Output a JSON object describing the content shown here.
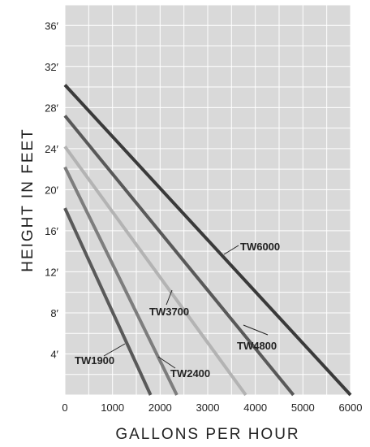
{
  "chart_data": {
    "type": "line",
    "title": "",
    "xlabel": "GALLONS PER HOUR",
    "ylabel": "HEIGHT IN FEET",
    "xlim": [
      0,
      6000
    ],
    "ylim": [
      0,
      38
    ],
    "grid": true,
    "legend": "inline-labels",
    "x_ticks": [
      {
        "value": 0,
        "label": "0"
      },
      {
        "value": 1000,
        "label": "1000"
      },
      {
        "value": 2000,
        "label": "2000"
      },
      {
        "value": 3000,
        "label": "3000"
      },
      {
        "value": 4000,
        "label": "4000"
      },
      {
        "value": 5000,
        "label": "5000"
      },
      {
        "value": 6000,
        "label": "6000"
      }
    ],
    "y_ticks": [
      {
        "value": 4,
        "label": "4′"
      },
      {
        "value": 8,
        "label": "8′"
      },
      {
        "value": 12,
        "label": "12′"
      },
      {
        "value": 16,
        "label": "16′"
      },
      {
        "value": 20,
        "label": "20′"
      },
      {
        "value": 24,
        "label": "24′"
      },
      {
        "value": 28,
        "label": "28′"
      },
      {
        "value": 32,
        "label": "32′"
      },
      {
        "value": 36,
        "label": "36′"
      }
    ],
    "series": [
      {
        "name": "TW6000",
        "color": "#3a3a3a",
        "x": [
          0,
          6000
        ],
        "y": [
          30.2,
          0
        ]
      },
      {
        "name": "TW4800",
        "color": "#595959",
        "x": [
          0,
          4800
        ],
        "y": [
          27.2,
          0
        ]
      },
      {
        "name": "TW3700",
        "color": "#b3b3b3",
        "x": [
          0,
          3800
        ],
        "y": [
          24.2,
          0
        ]
      },
      {
        "name": "TW2400",
        "color": "#7d7d7d",
        "x": [
          0,
          2350
        ],
        "y": [
          22.2,
          0
        ]
      },
      {
        "name": "TW1900",
        "color": "#595959",
        "x": [
          0,
          1800
        ],
        "y": [
          18.2,
          0
        ]
      }
    ]
  }
}
